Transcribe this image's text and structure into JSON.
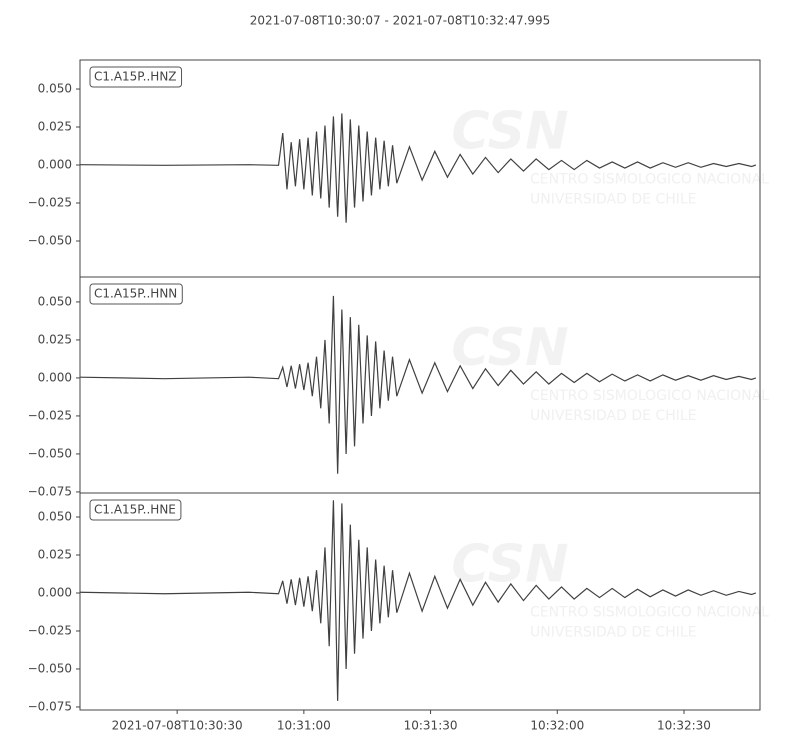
{
  "title": "2021-07-08T10:30:07  -  2021-07-08T10:32:47.995",
  "watermark": [
    "CSN",
    "CENTRO SISMOLOGICO NACIONAL",
    "UNIVERSIDAD DE CHILE"
  ],
  "chart_data": [
    {
      "type": "line",
      "annotation": "C1.A15P..HNZ",
      "xlim": [
        0,
        160.995
      ],
      "ylim": [
        -0.0737,
        0.0691
      ],
      "yticks": [
        {
          "value": -0.05,
          "label": "−0.050"
        },
        {
          "value": -0.025,
          "label": "−0.025"
        },
        {
          "value": 0,
          "label": "0.000"
        },
        {
          "value": 0.025,
          "label": "0.025"
        },
        {
          "value": 0.05,
          "label": "0.050"
        }
      ],
      "x": [
        0,
        20,
        40,
        47,
        48,
        49,
        50,
        51,
        52,
        53,
        54,
        55,
        56,
        57,
        58,
        59,
        60,
        61,
        62,
        63,
        64,
        65,
        66,
        67,
        68,
        69,
        70,
        71,
        72,
        73,
        74,
        75,
        78,
        81,
        84,
        87,
        90,
        93,
        96,
        99,
        102,
        105,
        108,
        111,
        114,
        117,
        120,
        123,
        126,
        129,
        132,
        135,
        138,
        141,
        144,
        147,
        150,
        153,
        156,
        159,
        160
      ],
      "series": [
        {
          "name": "C1.A15P..HNZ",
          "color": "#404040",
          "values": [
            0.0002,
            -0.0002,
            0.0002,
            -0.0002,
            0.021,
            -0.016,
            0.015,
            -0.014,
            0.017,
            -0.016,
            0.018,
            -0.02,
            0.022,
            -0.022,
            0.026,
            -0.028,
            0.032,
            -0.034,
            0.034,
            -0.038,
            0.03,
            -0.028,
            0.026,
            -0.024,
            0.022,
            -0.02,
            0.018,
            -0.016,
            0.016,
            -0.014,
            0.013,
            -0.012,
            0.012,
            -0.01,
            0.009,
            -0.008,
            0.007,
            -0.006,
            0.005,
            -0.005,
            0.004,
            -0.004,
            0.004,
            -0.003,
            0.003,
            -0.003,
            0.003,
            -0.002,
            0.002,
            -0.002,
            0.002,
            -0.002,
            0.0015,
            -0.0015,
            0.0015,
            -0.0015,
            0.001,
            -0.001,
            0.001,
            -0.001,
            0
          ]
        }
      ]
    },
    {
      "type": "line",
      "annotation": "C1.A15P..HNN",
      "xlim": [
        0,
        160.995
      ],
      "ylim": [
        -0.0757,
        0.0664
      ],
      "yticks": [
        {
          "value": -0.075,
          "label": "−0.075"
        },
        {
          "value": -0.05,
          "label": "−0.050"
        },
        {
          "value": -0.025,
          "label": "−0.025"
        },
        {
          "value": 0,
          "label": "0.000"
        },
        {
          "value": 0.025,
          "label": "0.025"
        },
        {
          "value": 0.05,
          "label": "0.050"
        }
      ],
      "x": [
        0,
        20,
        40,
        47,
        48,
        49,
        50,
        51,
        52,
        53,
        54,
        55,
        56,
        57,
        58,
        59,
        60,
        61,
        62,
        63,
        64,
        65,
        66,
        67,
        68,
        69,
        70,
        71,
        72,
        73,
        74,
        75,
        78,
        81,
        84,
        87,
        90,
        93,
        96,
        99,
        102,
        105,
        108,
        111,
        114,
        117,
        120,
        123,
        126,
        129,
        132,
        135,
        138,
        141,
        144,
        147,
        150,
        153,
        156,
        159,
        160
      ],
      "series": [
        {
          "name": "C1.A15P..HNN",
          "color": "#404040",
          "values": [
            0.0005,
            -0.0005,
            0.0005,
            -0.0005,
            0.007,
            -0.006,
            0.008,
            -0.007,
            0.009,
            -0.008,
            0.01,
            -0.012,
            0.014,
            -0.02,
            0.025,
            -0.03,
            0.054,
            -0.063,
            0.045,
            -0.05,
            0.04,
            -0.045,
            0.035,
            -0.03,
            0.028,
            -0.025,
            0.024,
            -0.02,
            0.018,
            -0.015,
            0.014,
            -0.012,
            0.012,
            -0.01,
            0.01,
            -0.009,
            0.008,
            -0.007,
            0.006,
            -0.005,
            0.005,
            -0.004,
            0.004,
            -0.004,
            0.003,
            -0.003,
            0.003,
            -0.0025,
            0.0025,
            -0.002,
            0.002,
            -0.002,
            0.002,
            -0.0015,
            0.0015,
            -0.0015,
            0.0015,
            -0.001,
            0.001,
            -0.001,
            0
          ]
        }
      ]
    },
    {
      "type": "line",
      "annotation": "C1.A15P..HNE",
      "xlim": [
        0,
        160.995
      ],
      "ylim": [
        -0.077,
        0.0658
      ],
      "yticks": [
        {
          "value": -0.075,
          "label": "−0.075"
        },
        {
          "value": -0.05,
          "label": "−0.050"
        },
        {
          "value": -0.025,
          "label": "−0.025"
        },
        {
          "value": 0,
          "label": "0.000"
        },
        {
          "value": 0.025,
          "label": "0.025"
        },
        {
          "value": 0.05,
          "label": "0.050"
        }
      ],
      "xticks": [
        {
          "value": 23,
          "label": "2021-07-08T10:30:30"
        },
        {
          "value": 53,
          "label": "10:31:00"
        },
        {
          "value": 83,
          "label": "10:31:30"
        },
        {
          "value": 113,
          "label": "10:32:00"
        },
        {
          "value": 143,
          "label": "10:32:30"
        }
      ],
      "x": [
        0,
        20,
        40,
        47,
        48,
        49,
        50,
        51,
        52,
        53,
        54,
        55,
        56,
        57,
        58,
        59,
        60,
        61,
        62,
        63,
        64,
        65,
        66,
        67,
        68,
        69,
        70,
        71,
        72,
        73,
        74,
        75,
        78,
        81,
        84,
        87,
        90,
        93,
        96,
        99,
        102,
        105,
        108,
        111,
        114,
        117,
        120,
        123,
        126,
        129,
        132,
        135,
        138,
        141,
        144,
        147,
        150,
        153,
        156,
        159,
        160
      ],
      "series": [
        {
          "name": "C1.A15P..HNE",
          "color": "#404040",
          "values": [
            0.0005,
            -0.0005,
            0.0005,
            -0.0005,
            0.008,
            -0.007,
            0.009,
            -0.008,
            0.01,
            -0.009,
            0.011,
            -0.012,
            0.015,
            -0.02,
            0.03,
            -0.035,
            0.061,
            -0.071,
            0.059,
            -0.05,
            0.045,
            -0.04,
            0.035,
            -0.03,
            0.03,
            -0.025,
            0.022,
            -0.02,
            0.018,
            -0.016,
            0.015,
            -0.013,
            0.013,
            -0.012,
            0.011,
            -0.01,
            0.009,
            -0.008,
            0.007,
            -0.006,
            0.006,
            -0.005,
            0.005,
            -0.004,
            0.004,
            -0.004,
            0.003,
            -0.003,
            0.003,
            -0.003,
            0.0025,
            -0.0025,
            0.002,
            -0.002,
            0.002,
            -0.0015,
            0.0015,
            -0.0015,
            0.001,
            -0.001,
            0
          ]
        }
      ]
    }
  ]
}
